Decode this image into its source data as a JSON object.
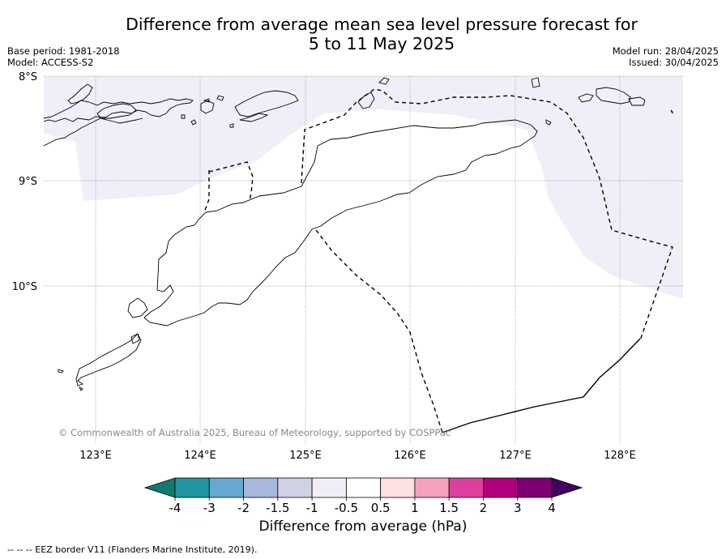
{
  "title_line1": "Difference from average mean sea level pressure forecast for",
  "title_line2": "5 to 11 May 2025",
  "base_period": "Base period: 1981-2018",
  "model": "Model: ACCESS-S2",
  "model_run": "Model run: 28/04/2025",
  "issued": "Issued: 30/04/2025",
  "lat_labels": [
    "8°S",
    "9°S",
    "10°S"
  ],
  "lon_labels": [
    "123°E",
    "124°E",
    "125°E",
    "126°E",
    "127°E",
    "128°E"
  ],
  "copyright": "© Commonwealth of Australia 2025, Bureau of Meteorology, supported by COSPPac",
  "colorbar": {
    "label": "Difference from average (hPa)",
    "ticks": [
      "-4",
      "-3",
      "-2",
      "-1.5",
      "-1",
      "-0.5",
      "0.5",
      "1",
      "1.5",
      "2",
      "3",
      "4"
    ],
    "colors": [
      "#0e7a70",
      "#2196a0",
      "#66a8d0",
      "#a8b8dc",
      "#d0d0e6",
      "#f2eef7",
      "#ffffff",
      "#fde0e0",
      "#f7a0bc",
      "#de3f9f",
      "#b1007b",
      "#7d0073",
      "#420060"
    ],
    "shaded_category": "-1 to -0.5",
    "shaded_color": "#f2eef7"
  },
  "eez_legend": "--  --  -- EEZ border V11 (Flanders Marine Institute, 2019)."
}
